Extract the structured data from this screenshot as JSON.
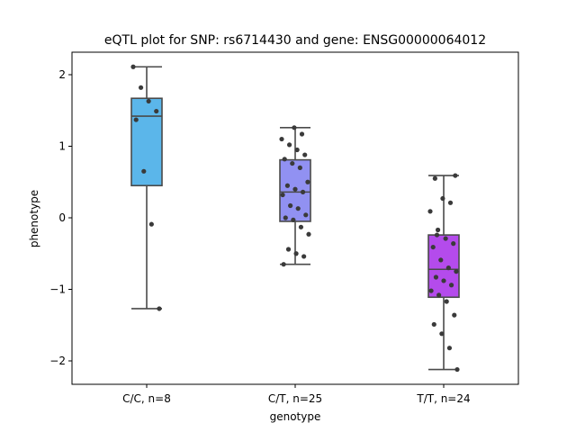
{
  "chart_data": {
    "type": "box",
    "title": "eQTL plot for SNP: rs6714430 and gene: ENSG00000064012",
    "xlabel": "genotype",
    "ylabel": "phenotype",
    "ylim": [
      -2.3,
      2.3
    ],
    "yticks": [
      2,
      1,
      0,
      -1,
      -2
    ],
    "ytick_labels": [
      "2",
      "1",
      "0",
      "−1",
      "−2"
    ],
    "grid": false,
    "legend": "none",
    "groups": [
      {
        "category": "C/C, n=8",
        "color": "#5bb6ea",
        "box": {
          "whisker_low": -1.27,
          "q1": 0.45,
          "median": 1.42,
          "q3": 1.67,
          "whisker_high": 2.11
        },
        "points": [
          2.11,
          1.82,
          1.63,
          1.49,
          1.37,
          0.65,
          -0.09,
          -1.27
        ]
      },
      {
        "category": "C/T, n=25",
        "color": "#9191f2",
        "box": {
          "whisker_low": -0.65,
          "q1": -0.05,
          "median": 0.36,
          "q3": 0.81,
          "whisker_high": 1.26
        },
        "points": [
          1.26,
          1.17,
          1.1,
          1.02,
          0.95,
          0.88,
          0.82,
          0.76,
          0.7,
          0.5,
          0.45,
          0.4,
          0.36,
          0.32,
          0.17,
          0.13,
          0.04,
          0.0,
          -0.03,
          -0.13,
          -0.23,
          -0.44,
          -0.5,
          -0.54,
          -0.65
        ]
      },
      {
        "category": "T/T, n=24",
        "color": "#b44bec",
        "box": {
          "whisker_low": -2.12,
          "q1": -1.11,
          "median": -0.72,
          "q3": -0.24,
          "whisker_high": 0.59
        },
        "points": [
          0.59,
          0.55,
          0.27,
          0.21,
          0.09,
          -0.17,
          -0.29,
          -0.36,
          -0.41,
          -0.59,
          -0.7,
          -0.75,
          -0.83,
          -0.88,
          -0.94,
          -1.02,
          -1.08,
          -1.17,
          -1.36,
          -1.49,
          -1.62,
          -1.82,
          -2.12,
          -0.24
        ]
      }
    ]
  }
}
